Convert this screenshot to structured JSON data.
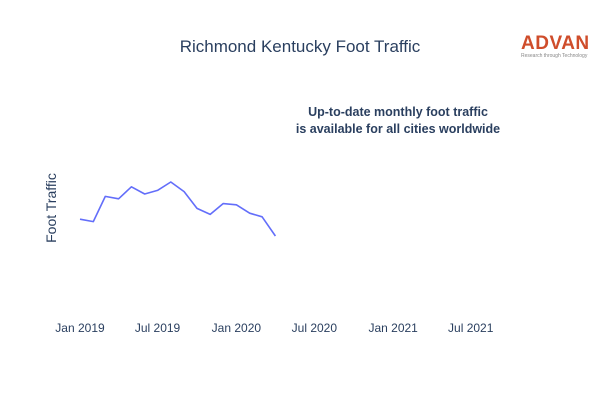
{
  "logo": {
    "name": "ADVAN",
    "tagline": "Research through Technology"
  },
  "colors": {
    "line": "#636efa",
    "text": "#2a3f5f",
    "brand": "#cf4d2b"
  },
  "chart_data": {
    "type": "line",
    "title": "Richmond Kentucky Foot Traffic",
    "annotation": [
      "Up-to-date monthly foot traffic",
      "is available for all cities worldwide"
    ],
    "xlabel": "",
    "ylabel": "Foot Traffic",
    "y_ticks_shown": false,
    "grid": false,
    "x_ticks": [
      "Jan 2019",
      "Jul 2019",
      "Jan 2020",
      "Jul 2020",
      "Jan 2021",
      "Jul 2021"
    ],
    "x_tick_dates": [
      "2019-01-01",
      "2019-07-01",
      "2020-01-01",
      "2020-07-01",
      "2021-01-01",
      "2021-07-01"
    ],
    "series": [
      {
        "x": [
          "2019-01-01",
          "2019-02-01",
          "2019-03-01",
          "2019-04-01",
          "2019-05-01",
          "2019-06-01",
          "2019-07-01",
          "2019-08-01",
          "2019-09-01",
          "2019-10-01",
          "2019-11-01",
          "2019-12-01",
          "2020-01-01",
          "2020-02-01",
          "2020-03-01",
          "2020-04-01"
        ],
        "y": [
          0.59,
          0.57,
          0.78,
          0.76,
          0.86,
          0.8,
          0.83,
          0.9,
          0.82,
          0.68,
          0.63,
          0.72,
          0.71,
          0.64,
          0.61,
          0.45
        ]
      }
    ]
  }
}
